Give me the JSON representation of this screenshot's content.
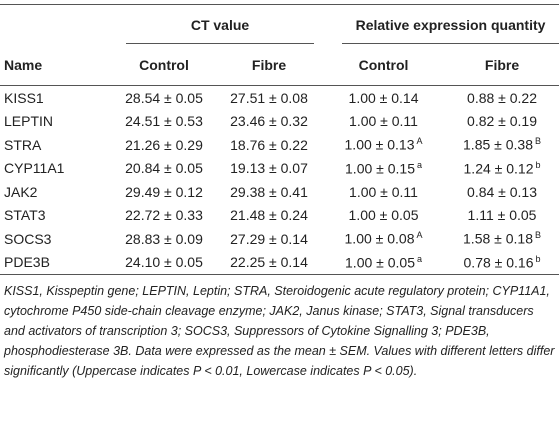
{
  "table": {
    "group_headers": [
      "CT value",
      "Relative expression quantity"
    ],
    "headers": [
      "Name",
      "Control",
      "Fibre",
      "Control",
      "Fibre"
    ],
    "rows": [
      [
        "KISS1",
        "28.54 ± 0.05",
        "27.51 ± 0.08",
        "1.00 ± 0.14",
        "0.88 ± 0.22"
      ],
      [
        "LEPTIN",
        "24.51 ± 0.53",
        "23.46 ± 0.32",
        "1.00 ± 0.11",
        "0.82 ± 0.19"
      ],
      [
        "STRA",
        "21.26 ± 0.29",
        "18.76 ± 0.22",
        {
          "text": "1.00 ± 0.13",
          "sup": "A"
        },
        {
          "text": "1.85 ± 0.38",
          "sup": "B"
        }
      ],
      [
        "CYP11A1",
        "20.84 ± 0.05",
        "19.13 ± 0.07",
        {
          "text": "1.00 ± 0.15",
          "sup": "a"
        },
        {
          "text": "1.24 ± 0.12",
          "sup": "b"
        }
      ],
      [
        "JAK2",
        "29.49 ± 0.12",
        "29.38 ± 0.41",
        "1.00 ± 0.11",
        "0.84 ± 0.13"
      ],
      [
        "STAT3",
        "22.72 ± 0.33",
        "21.48 ± 0.24",
        "1.00 ± 0.05",
        "1.11 ± 0.05"
      ],
      [
        "SOCS3",
        "28.83 ± 0.09",
        "27.29 ± 0.14",
        {
          "text": "1.00 ± 0.08",
          "sup": "A"
        },
        {
          "text": "1.58 ± 0.18",
          "sup": "B"
        }
      ],
      [
        "PDE3B",
        "24.10 ± 0.05",
        "22.25 ± 0.14",
        {
          "text": "1.00 ± 0.05",
          "sup": "a"
        },
        {
          "text": "0.78 ± 0.16",
          "sup": "b"
        }
      ]
    ],
    "footnote": "KISS1, Kisspeptin gene; LEPTIN, Leptin; STRA, Steroidogenic acute regulatory protein; CYP11A1, cytochrome P450 side-chain cleavage enzyme; JAK2, Janus kinase; STAT3, Signal transducers and activators of transcription 3; SOCS3, Suppressors of Cytokine Signalling 3; PDE3B, phosphodiesterase 3B. Data were expressed as the mean ± SEM. Values with different letters differ significantly (Uppercase indicates P < 0.01, Lowercase indicates P < 0.05)."
  }
}
